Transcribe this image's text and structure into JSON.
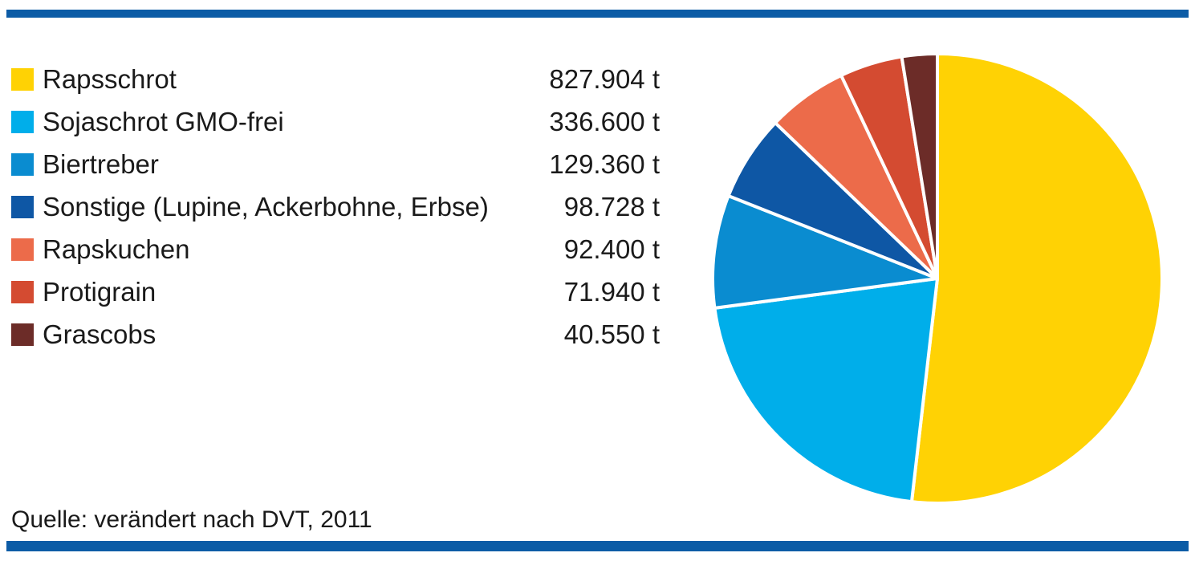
{
  "accent_bar_color": "#0C5CA6",
  "source_note": "Quelle: verändert nach DVT, 2011",
  "chart_data": {
    "type": "pie",
    "unit": "t",
    "start_angle_deg": 0,
    "direction": "clockwise",
    "legend_position": "left",
    "grid": false,
    "title": "",
    "items": [
      {
        "label": "Rapsschrot",
        "value": 827904,
        "display": "827.904 t",
        "color": "#FFD204"
      },
      {
        "label": "Sojaschrot GMO-frei",
        "value": 336600,
        "display": "336.600 t",
        "color": "#00AEEA"
      },
      {
        "label": "Biertreber",
        "value": 129360,
        "display": "129.360 t",
        "color": "#0A8CD0"
      },
      {
        "label": "Sonstige (Lupine, Ackerbohne, Erbse)",
        "value": 98728,
        "display": "98.728 t",
        "color": "#0E57A5"
      },
      {
        "label": "Rapskuchen",
        "value": 92400,
        "display": "92.400 t",
        "color": "#EC6B4A"
      },
      {
        "label": "Protigrain",
        "value": 71940,
        "display": "71.940 t",
        "color": "#D44B31"
      },
      {
        "label": "Grascobs",
        "value": 40550,
        "display": "40.550 t",
        "color": "#6C2C28"
      }
    ]
  }
}
